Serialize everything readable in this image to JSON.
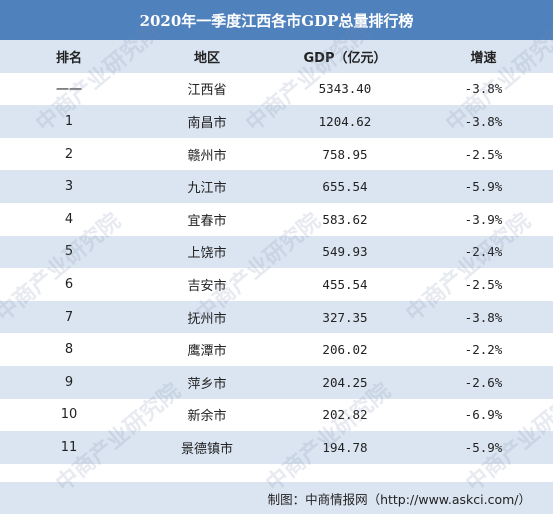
{
  "title": "2020年一季度江西各市GDP总量排行榜",
  "headers": [
    "排名",
    "地区",
    "GDP（亿元）",
    "增速"
  ],
  "rows": [
    {
      "rank": "一一",
      "region": "江西省",
      "gdp": "5343.40",
      "growth": "-3.8%"
    },
    {
      "rank": "1",
      "region": "南昌市",
      "gdp": "1204.62",
      "growth": "-3.8%"
    },
    {
      "rank": "2",
      "region": "赣州市",
      "gdp": "758.95",
      "growth": "-2.5%"
    },
    {
      "rank": "3",
      "region": "九江市",
      "gdp": "655.54",
      "growth": "-5.9%"
    },
    {
      "rank": "4",
      "region": "宜春市",
      "gdp": "583.62",
      "growth": "-3.9%"
    },
    {
      "rank": "5",
      "region": "上饶市",
      "gdp": "549.93",
      "growth": "-2.4%"
    },
    {
      "rank": "6",
      "region": "吉安市",
      "gdp": "455.54",
      "growth": "-2.5%"
    },
    {
      "rank": "7",
      "region": "抚州市",
      "gdp": "327.35",
      "growth": "-3.8%"
    },
    {
      "rank": "8",
      "region": "鹰潭市",
      "gdp": "206.02",
      "growth": "-2.2%"
    },
    {
      "rank": "9",
      "region": "萍乡市",
      "gdp": "204.25",
      "growth": "-2.6%"
    },
    {
      "rank": "10",
      "region": "新余市",
      "gdp": "202.82",
      "growth": "-6.9%"
    },
    {
      "rank": "11",
      "region": "景德镇市",
      "gdp": "194.78",
      "growth": "-5.9%"
    }
  ],
  "footer": "制图：中商情报网（http://www.askci.com/）",
  "watermark": "中商产业研究院",
  "colors": {
    "header_bg": "#4f81bd",
    "stripe": "#dbe5f1"
  }
}
